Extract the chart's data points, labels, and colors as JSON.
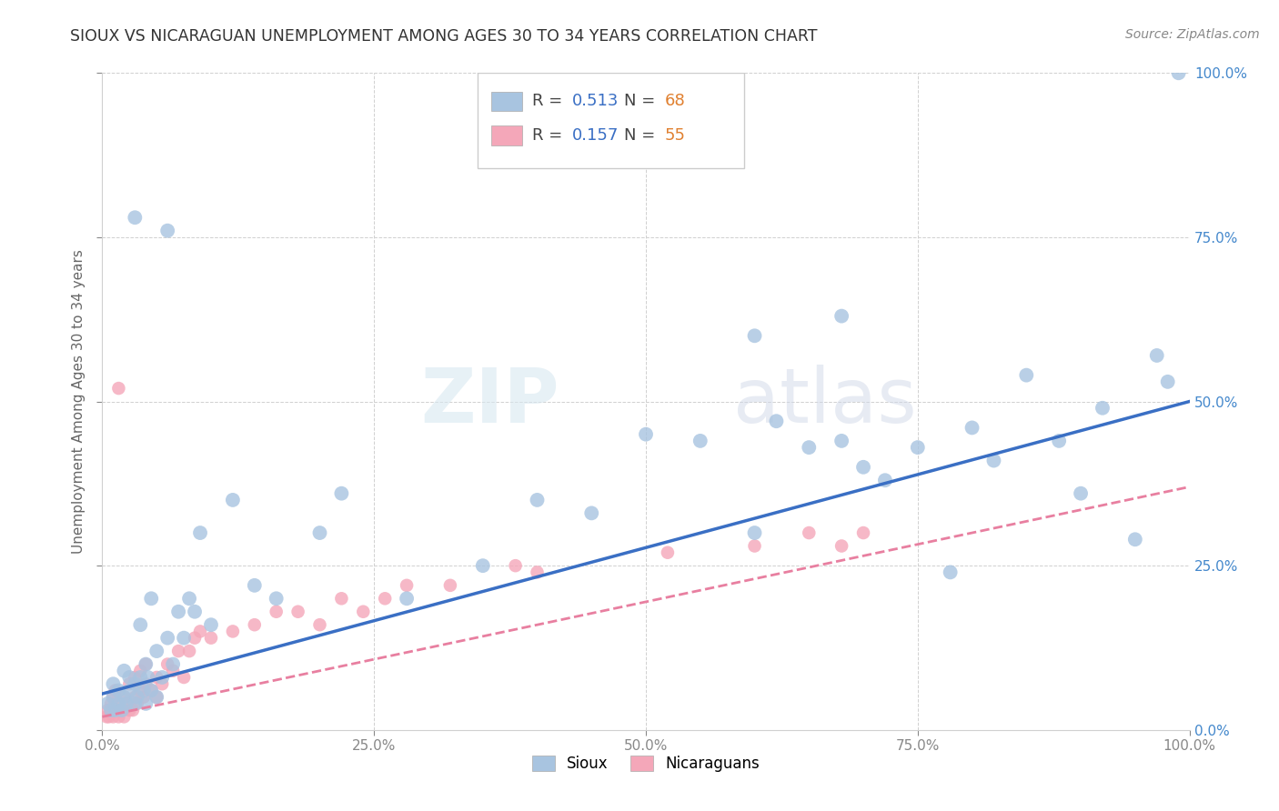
{
  "title": "SIOUX VS NICARAGUAN UNEMPLOYMENT AMONG AGES 30 TO 34 YEARS CORRELATION CHART",
  "source": "Source: ZipAtlas.com",
  "ylabel": "Unemployment Among Ages 30 to 34 years",
  "xlim": [
    0,
    1.0
  ],
  "ylim": [
    0,
    1.0
  ],
  "xticks": [
    0.0,
    0.25,
    0.5,
    0.75,
    1.0
  ],
  "yticks": [
    0.0,
    0.25,
    0.5,
    0.75,
    1.0
  ],
  "xticklabels": [
    "0.0%",
    "25.0%",
    "50.0%",
    "75.0%",
    "100.0%"
  ],
  "right_yticklabels": [
    "0.0%",
    "25.0%",
    "50.0%",
    "75.0%",
    "100.0%"
  ],
  "sioux_color": "#a8c4e0",
  "nicaraguan_color": "#f4a7b9",
  "sioux_line_color": "#3a6fc4",
  "nicaraguan_line_color": "#e87fa0",
  "background_color": "#ffffff",
  "grid_color": "#d0d0d0",
  "legend_R_sioux": "0.513",
  "legend_N_sioux": "68",
  "legend_R_nicaraguan": "0.157",
  "legend_N_nicaraguan": "55",
  "watermark": "ZIPatlas",
  "sioux_line_x0": 0.0,
  "sioux_line_y0": 0.055,
  "sioux_line_x1": 1.0,
  "sioux_line_y1": 0.5,
  "nicaraguan_line_x0": 0.0,
  "nicaraguan_line_y0": 0.02,
  "nicaraguan_line_x1": 1.0,
  "nicaraguan_line_y1": 0.37,
  "sioux_x": [
    0.005,
    0.008,
    0.01,
    0.01,
    0.012,
    0.015,
    0.015,
    0.018,
    0.02,
    0.02,
    0.022,
    0.025,
    0.025,
    0.03,
    0.03,
    0.032,
    0.035,
    0.035,
    0.038,
    0.04,
    0.04,
    0.042,
    0.045,
    0.045,
    0.05,
    0.05,
    0.055,
    0.06,
    0.065,
    0.07,
    0.075,
    0.08,
    0.085,
    0.09,
    0.1,
    0.12,
    0.14,
    0.16,
    0.2,
    0.22,
    0.28,
    0.35,
    0.4,
    0.45,
    0.5,
    0.55,
    0.6,
    0.62,
    0.65,
    0.68,
    0.7,
    0.72,
    0.75,
    0.78,
    0.8,
    0.82,
    0.85,
    0.88,
    0.9,
    0.92,
    0.95,
    0.97,
    0.98,
    0.99,
    0.6,
    0.68,
    0.03,
    0.06
  ],
  "sioux_y": [
    0.04,
    0.03,
    0.05,
    0.07,
    0.03,
    0.04,
    0.06,
    0.03,
    0.05,
    0.09,
    0.04,
    0.06,
    0.08,
    0.04,
    0.07,
    0.05,
    0.08,
    0.16,
    0.06,
    0.04,
    0.1,
    0.08,
    0.06,
    0.2,
    0.05,
    0.12,
    0.08,
    0.14,
    0.1,
    0.18,
    0.14,
    0.2,
    0.18,
    0.3,
    0.16,
    0.35,
    0.22,
    0.2,
    0.3,
    0.36,
    0.2,
    0.25,
    0.35,
    0.33,
    0.45,
    0.44,
    0.3,
    0.47,
    0.43,
    0.44,
    0.4,
    0.38,
    0.43,
    0.24,
    0.46,
    0.41,
    0.54,
    0.44,
    0.36,
    0.49,
    0.29,
    0.57,
    0.53,
    1.0,
    0.6,
    0.63,
    0.78,
    0.76
  ],
  "nicaraguan_x": [
    0.004,
    0.005,
    0.006,
    0.008,
    0.01,
    0.01,
    0.012,
    0.012,
    0.015,
    0.015,
    0.018,
    0.02,
    0.02,
    0.022,
    0.025,
    0.025,
    0.028,
    0.03,
    0.03,
    0.032,
    0.035,
    0.035,
    0.038,
    0.04,
    0.04,
    0.045,
    0.05,
    0.05,
    0.055,
    0.06,
    0.065,
    0.07,
    0.075,
    0.08,
    0.085,
    0.09,
    0.1,
    0.12,
    0.14,
    0.16,
    0.18,
    0.2,
    0.22,
    0.24,
    0.26,
    0.28,
    0.32,
    0.38,
    0.4,
    0.52,
    0.6,
    0.65,
    0.68,
    0.7,
    0.015
  ],
  "nicaraguan_y": [
    0.02,
    0.03,
    0.02,
    0.04,
    0.02,
    0.05,
    0.03,
    0.06,
    0.02,
    0.04,
    0.03,
    0.02,
    0.05,
    0.04,
    0.03,
    0.07,
    0.03,
    0.05,
    0.08,
    0.04,
    0.06,
    0.09,
    0.05,
    0.07,
    0.1,
    0.06,
    0.05,
    0.08,
    0.07,
    0.1,
    0.09,
    0.12,
    0.08,
    0.12,
    0.14,
    0.15,
    0.14,
    0.15,
    0.16,
    0.18,
    0.18,
    0.16,
    0.2,
    0.18,
    0.2,
    0.22,
    0.22,
    0.25,
    0.24,
    0.27,
    0.28,
    0.3,
    0.28,
    0.3,
    0.52
  ]
}
